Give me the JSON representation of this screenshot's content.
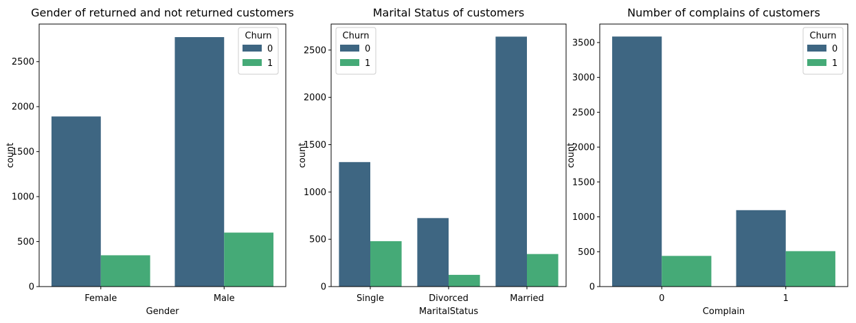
{
  "palette": {
    "churn_0": "#3e6682",
    "churn_1": "#45aa77",
    "axis": "#000000",
    "legend_border": "#cccccc"
  },
  "chart_data": [
    {
      "type": "bar",
      "title": "Gender of returned and not returned customers",
      "xlabel": "Gender",
      "ylabel": "count",
      "categories": [
        "Female",
        "Male"
      ],
      "series": [
        {
          "name": "0",
          "values": [
            1891,
            2773
          ]
        },
        {
          "name": "1",
          "values": [
            348,
            600
          ]
        }
      ],
      "yticks": [
        0,
        500,
        1000,
        1500,
        2000,
        2500
      ],
      "ylim": [
        0,
        2918
      ],
      "legend": {
        "title": "Churn",
        "position": "top-right"
      },
      "grid": false
    },
    {
      "type": "bar",
      "title": "Marital Status of customers",
      "xlabel": "MaritalStatus",
      "ylabel": "count",
      "categories": [
        "Single",
        "Divorced",
        "Married"
      ],
      "series": [
        {
          "name": "0",
          "values": [
            1316,
            724,
            2642
          ]
        },
        {
          "name": "1",
          "values": [
            480,
            124,
            344
          ]
        }
      ],
      "yticks": [
        0,
        500,
        1000,
        1500,
        2000,
        2500
      ],
      "ylim": [
        0,
        2775
      ],
      "legend": {
        "title": "Churn",
        "position": "top-left"
      },
      "grid": false
    },
    {
      "type": "bar",
      "title": "Number of complains of customers",
      "xlabel": "Complain",
      "ylabel": "count",
      "categories": [
        "0",
        "1"
      ],
      "series": [
        {
          "name": "0",
          "values": [
            3586,
            1096
          ]
        },
        {
          "name": "1",
          "values": [
            440,
            508
          ]
        }
      ],
      "yticks": [
        0,
        500,
        1000,
        1500,
        2000,
        2500,
        3000,
        3500
      ],
      "ylim": [
        0,
        3765
      ],
      "legend": {
        "title": "Churn",
        "position": "top-right"
      },
      "grid": false
    }
  ]
}
